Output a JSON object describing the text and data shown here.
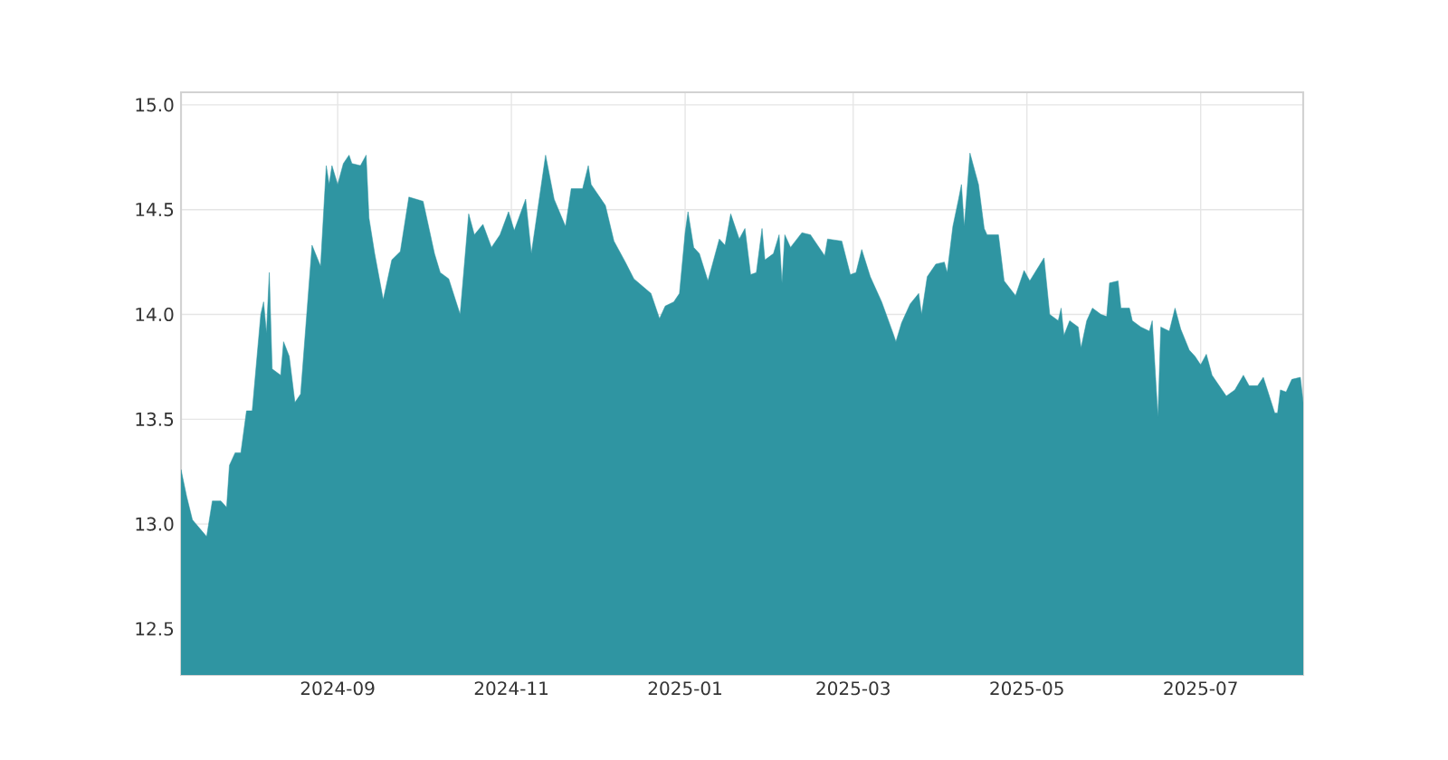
{
  "chart_data": {
    "type": "area",
    "x": [
      "2024-07-08",
      "2024-07-10",
      "2024-07-12",
      "2024-07-17",
      "2024-07-19",
      "2024-07-22",
      "2024-07-24",
      "2024-07-25",
      "2024-07-27",
      "2024-07-29",
      "2024-07-31",
      "2024-08-02",
      "2024-08-05",
      "2024-08-06",
      "2024-08-07",
      "2024-08-08",
      "2024-08-09",
      "2024-08-12",
      "2024-08-13",
      "2024-08-15",
      "2024-08-17",
      "2024-08-19",
      "2024-08-23",
      "2024-08-26",
      "2024-08-28",
      "2024-08-29",
      "2024-08-30",
      "2024-09-01",
      "2024-09-03",
      "2024-09-05",
      "2024-09-06",
      "2024-09-09",
      "2024-09-11",
      "2024-09-12",
      "2024-09-14",
      "2024-09-17",
      "2024-09-20",
      "2024-09-23",
      "2024-09-26",
      "2024-10-01",
      "2024-10-05",
      "2024-10-07",
      "2024-10-10",
      "2024-10-14",
      "2024-10-17",
      "2024-10-19",
      "2024-10-22",
      "2024-10-25",
      "2024-10-28",
      "2024-10-31",
      "2024-11-02",
      "2024-11-06",
      "2024-11-08",
      "2024-11-13",
      "2024-11-16",
      "2024-11-20",
      "2024-11-22",
      "2024-11-26",
      "2024-11-28",
      "2024-11-29",
      "2024-12-04",
      "2024-12-07",
      "2024-12-11",
      "2024-12-14",
      "2024-12-20",
      "2024-12-23",
      "2024-12-25",
      "2024-12-28",
      "2024-12-30",
      "2025-01-01",
      "2025-01-02",
      "2025-01-04",
      "2025-01-06",
      "2025-01-09",
      "2025-01-13",
      "2025-01-15",
      "2025-01-17",
      "2025-01-20",
      "2025-01-22",
      "2025-01-24",
      "2025-01-26",
      "2025-01-28",
      "2025-01-29",
      "2025-02-01",
      "2025-02-03",
      "2025-02-04",
      "2025-02-05",
      "2025-02-07",
      "2025-02-11",
      "2025-02-14",
      "2025-02-19",
      "2025-02-20",
      "2025-02-25",
      "2025-02-28",
      "2025-03-02",
      "2025-03-04",
      "2025-03-07",
      "2025-03-11",
      "2025-03-15",
      "2025-03-16",
      "2025-03-18",
      "2025-03-21",
      "2025-03-24",
      "2025-03-25",
      "2025-03-27",
      "2025-03-30",
      "2025-04-02",
      "2025-04-03",
      "2025-04-05",
      "2025-04-07",
      "2025-04-08",
      "2025-04-09",
      "2025-04-11",
      "2025-04-14",
      "2025-04-16",
      "2025-04-17",
      "2025-04-21",
      "2025-04-23",
      "2025-04-27",
      "2025-04-30",
      "2025-05-02",
      "2025-05-07",
      "2025-05-09",
      "2025-05-12",
      "2025-05-13",
      "2025-05-14",
      "2025-05-16",
      "2025-05-19",
      "2025-05-20",
      "2025-05-22",
      "2025-05-24",
      "2025-05-27",
      "2025-05-29",
      "2025-05-30",
      "2025-06-02",
      "2025-06-03",
      "2025-06-06",
      "2025-06-07",
      "2025-06-10",
      "2025-06-13",
      "2025-06-14",
      "2025-06-16",
      "2025-06-17",
      "2025-06-20",
      "2025-06-22",
      "2025-06-24",
      "2025-06-27",
      "2025-06-29",
      "2025-07-01",
      "2025-07-03",
      "2025-07-05",
      "2025-07-10",
      "2025-07-13",
      "2025-07-16",
      "2025-07-18",
      "2025-07-21",
      "2025-07-23",
      "2025-07-27",
      "2025-07-28",
      "2025-07-29",
      "2025-07-31",
      "2025-08-02",
      "2025-08-05",
      "2025-08-06"
    ],
    "series": [
      {
        "color": "#2f95a2",
        "values": [
          13.26,
          13.13,
          13.02,
          12.94,
          13.11,
          13.11,
          13.08,
          13.28,
          13.34,
          13.34,
          13.54,
          13.54,
          14.0,
          14.06,
          13.91,
          14.2,
          13.74,
          13.71,
          13.87,
          13.8,
          13.58,
          13.62,
          14.33,
          14.23,
          14.71,
          14.62,
          14.71,
          14.62,
          14.72,
          14.76,
          14.72,
          14.71,
          14.76,
          14.46,
          14.29,
          14.07,
          14.26,
          14.3,
          14.56,
          14.54,
          14.29,
          14.2,
          14.17,
          14.0,
          14.48,
          14.38,
          14.43,
          14.32,
          14.38,
          14.49,
          14.4,
          14.55,
          14.29,
          14.76,
          14.55,
          14.42,
          14.6,
          14.6,
          14.71,
          14.62,
          14.52,
          14.35,
          14.25,
          14.17,
          14.1,
          13.98,
          14.04,
          14.06,
          14.1,
          14.39,
          14.49,
          14.32,
          14.29,
          14.16,
          14.36,
          14.33,
          14.48,
          14.36,
          14.41,
          14.19,
          14.2,
          14.41,
          14.26,
          14.29,
          14.38,
          14.15,
          14.38,
          14.32,
          14.39,
          14.38,
          14.28,
          14.36,
          14.35,
          14.19,
          14.2,
          14.31,
          14.18,
          14.06,
          13.91,
          13.87,
          13.96,
          14.05,
          14.1,
          14.0,
          14.18,
          14.24,
          14.25,
          14.2,
          14.42,
          14.55,
          14.62,
          14.42,
          14.77,
          14.62,
          14.41,
          14.38,
          14.38,
          14.16,
          14.09,
          14.21,
          14.16,
          14.27,
          14.0,
          13.97,
          14.03,
          13.9,
          13.97,
          13.94,
          13.84,
          13.97,
          14.03,
          14.0,
          13.99,
          14.15,
          14.16,
          14.03,
          14.03,
          13.97,
          13.94,
          13.92,
          13.97,
          13.51,
          13.94,
          13.92,
          14.03,
          13.93,
          13.83,
          13.8,
          13.76,
          13.81,
          13.71,
          13.61,
          13.64,
          13.71,
          13.66,
          13.66,
          13.7,
          13.53,
          13.53,
          13.64,
          13.63,
          13.69,
          13.7,
          13.58
        ]
      }
    ],
    "xlim": [
      "2024-07-08",
      "2025-08-06"
    ],
    "xticks": [
      {
        "value": "2024-09",
        "label": "2024-09"
      },
      {
        "value": "2024-11",
        "label": "2024-11"
      },
      {
        "value": "2025-01",
        "label": "2025-01"
      },
      {
        "value": "2025-03",
        "label": "2025-03"
      },
      {
        "value": "2025-05",
        "label": "2025-05"
      },
      {
        "value": "2025-07",
        "label": "2025-07"
      }
    ],
    "ylim": [
      12.28,
      15.06
    ],
    "yticks": [
      {
        "value": 12.5,
        "label": "12.5"
      },
      {
        "value": 13.0,
        "label": "13.0"
      },
      {
        "value": 13.5,
        "label": "13.5"
      },
      {
        "value": 14.0,
        "label": "14.0"
      },
      {
        "value": 14.5,
        "label": "14.5"
      },
      {
        "value": 15.0,
        "label": "15.0"
      }
    ],
    "grid": true
  }
}
